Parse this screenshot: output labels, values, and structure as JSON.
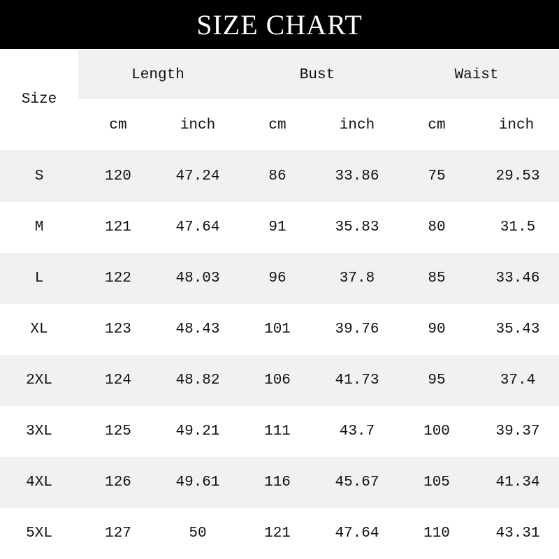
{
  "title": "SIZE CHART",
  "colors": {
    "header_bg": "#000000",
    "header_text": "#ffffff",
    "stripe": "#f1f1f1"
  },
  "table": {
    "size_header": "Size",
    "groups": [
      "Length",
      "Bust",
      "Waist"
    ],
    "units": [
      "cm",
      "inch",
      "cm",
      "inch",
      "cm",
      "inch"
    ],
    "rows": [
      [
        "S",
        "120",
        "47.24",
        "86",
        "33.86",
        "75",
        "29.53"
      ],
      [
        "M",
        "121",
        "47.64",
        "91",
        "35.83",
        "80",
        "31.5"
      ],
      [
        "L",
        "122",
        "48.03",
        "96",
        "37.8",
        "85",
        "33.46"
      ],
      [
        "XL",
        "123",
        "48.43",
        "101",
        "39.76",
        "90",
        "35.43"
      ],
      [
        "2XL",
        "124",
        "48.82",
        "106",
        "41.73",
        "95",
        "37.4"
      ],
      [
        "3XL",
        "125",
        "49.21",
        "111",
        "43.7",
        "100",
        "39.37"
      ],
      [
        "4XL",
        "126",
        "49.61",
        "116",
        "45.67",
        "105",
        "41.34"
      ],
      [
        "5XL",
        "127",
        "50",
        "121",
        "47.64",
        "110",
        "43.31"
      ]
    ]
  }
}
